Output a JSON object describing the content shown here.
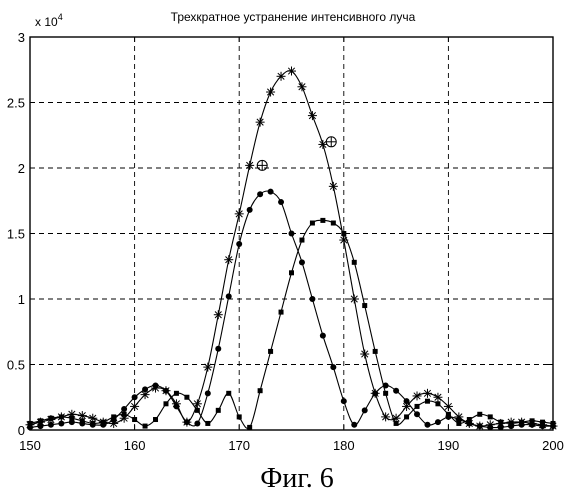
{
  "chart_data": {
    "type": "line",
    "title": "Трехкратное устранение интенсивного луча",
    "y_exponent_label": "x 10",
    "y_exponent_power": "4",
    "caption": "Фиг. 6",
    "xlim": [
      150,
      200
    ],
    "ylim": [
      0,
      3
    ],
    "grid": true,
    "x_ticks": [
      150,
      160,
      170,
      180,
      190,
      200
    ],
    "x_tick_labels": [
      "150",
      "160",
      "170",
      "180",
      "190",
      "200"
    ],
    "y_ticks": [
      0,
      0.5,
      1,
      1.5,
      2,
      2.5,
      3
    ],
    "y_tick_labels": [
      "0",
      "0.5",
      "1",
      "1.5",
      "2",
      "2.5",
      "3"
    ],
    "series": [
      {
        "marker": "star",
        "x": [
          150,
          151,
          152,
          153,
          154,
          155,
          156,
          157,
          158,
          159,
          160,
          161,
          162,
          163,
          164,
          165,
          166,
          167,
          168,
          169,
          170,
          171,
          172,
          173,
          174,
          175,
          176,
          177,
          178,
          179,
          180,
          181,
          182,
          183,
          184,
          185,
          186,
          187,
          188,
          189,
          190,
          191,
          192,
          193,
          194,
          195,
          196,
          197,
          198,
          199,
          200
        ],
        "y": [
          0.04,
          0.06,
          0.08,
          0.1,
          0.12,
          0.11,
          0.09,
          0.06,
          0.05,
          0.09,
          0.18,
          0.27,
          0.32,
          0.3,
          0.2,
          0.06,
          0.2,
          0.48,
          0.88,
          1.3,
          1.65,
          2.02,
          2.35,
          2.58,
          2.7,
          2.74,
          2.62,
          2.4,
          2.18,
          1.86,
          1.45,
          1.0,
          0.58,
          0.28,
          0.1,
          0.09,
          0.18,
          0.26,
          0.28,
          0.25,
          0.18,
          0.1,
          0.05,
          0.03,
          0.04,
          0.05,
          0.06,
          0.06,
          0.05,
          0.04,
          0.03
        ]
      },
      {
        "marker": "dot",
        "x": [
          150,
          151,
          152,
          153,
          154,
          155,
          156,
          157,
          158,
          159,
          160,
          161,
          162,
          163,
          164,
          165,
          166,
          167,
          168,
          169,
          170,
          171,
          172,
          173,
          174,
          175,
          176,
          177,
          178,
          179,
          180,
          181,
          182,
          183,
          184,
          185,
          186,
          187,
          188,
          189,
          190,
          191,
          192,
          193,
          194,
          195,
          196,
          197,
          198,
          199,
          200
        ],
        "y": [
          0.02,
          0.03,
          0.04,
          0.05,
          0.06,
          0.05,
          0.04,
          0.04,
          0.08,
          0.16,
          0.25,
          0.31,
          0.34,
          0.3,
          0.18,
          0.06,
          0.05,
          0.28,
          0.62,
          1.02,
          1.42,
          1.68,
          1.8,
          1.82,
          1.74,
          1.5,
          1.28,
          1.0,
          0.72,
          0.48,
          0.22,
          0.04,
          0.15,
          0.28,
          0.34,
          0.3,
          0.22,
          0.12,
          0.04,
          0.06,
          0.1,
          0.08,
          0.05,
          0.03,
          0.02,
          0.02,
          0.03,
          0.04,
          0.04,
          0.03,
          0.03
        ]
      },
      {
        "marker": "square",
        "x": [
          150,
          151,
          152,
          153,
          154,
          155,
          156,
          157,
          158,
          159,
          160,
          161,
          162,
          163,
          164,
          165,
          166,
          167,
          168,
          169,
          170,
          171,
          172,
          173,
          174,
          175,
          176,
          177,
          178,
          179,
          180,
          181,
          182,
          183,
          184,
          185,
          186,
          187,
          188,
          189,
          190,
          191,
          192,
          193,
          194,
          195,
          196,
          197,
          198,
          199,
          200
        ],
        "y": [
          0.05,
          0.07,
          0.09,
          0.1,
          0.09,
          0.07,
          0.05,
          0.06,
          0.1,
          0.12,
          0.08,
          0.03,
          0.08,
          0.2,
          0.28,
          0.25,
          0.15,
          0.05,
          0.15,
          0.28,
          0.1,
          0.02,
          0.3,
          0.6,
          0.9,
          1.2,
          1.45,
          1.58,
          1.6,
          1.58,
          1.5,
          1.28,
          0.95,
          0.6,
          0.28,
          0.05,
          0.1,
          0.18,
          0.22,
          0.2,
          0.12,
          0.05,
          0.08,
          0.12,
          0.1,
          0.06,
          0.05,
          0.06,
          0.07,
          0.06,
          0.05
        ]
      }
    ],
    "annotations": [
      {
        "marker": "circled-plus",
        "x": 172.2,
        "y": 2.02
      },
      {
        "marker": "circled-plus",
        "x": 178.8,
        "y": 2.2
      }
    ]
  }
}
